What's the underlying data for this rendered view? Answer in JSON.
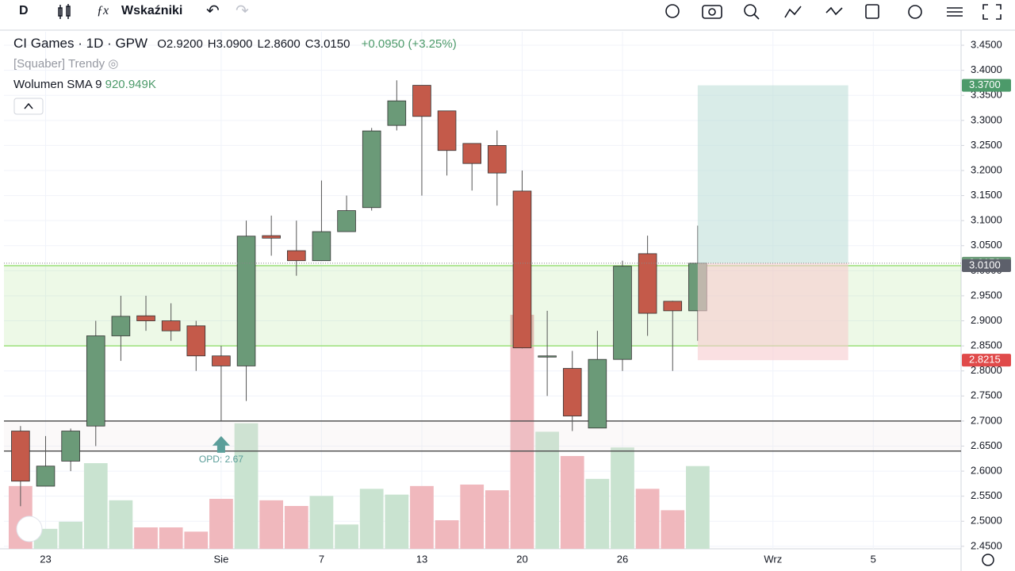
{
  "toolbar": {
    "interval": "D",
    "indicators": "Wskaźniki"
  },
  "legend": {
    "title": "CI Games · 1D · GPW",
    "ohlc": [
      "O2.9200",
      "H3.0900",
      "L2.8600",
      "C3.0150"
    ],
    "change": "+0.0950 (+3.25%)",
    "indicator": "[Squaber] Trendy",
    "volume_label": "Wolumen SMA 9",
    "volume_value": "920.949K"
  },
  "chart_data": {
    "type": "candlestick",
    "x": [
      0,
      1,
      2,
      3,
      4,
      5,
      6,
      7,
      8,
      9,
      10,
      11,
      12,
      13,
      14,
      15,
      16,
      17,
      18,
      19,
      20,
      21,
      22,
      23,
      24,
      25,
      26,
      27
    ],
    "open": [
      2.68,
      2.57,
      2.62,
      2.69,
      2.87,
      2.91,
      2.9,
      2.89,
      2.83,
      2.81,
      3.07,
      3.04,
      3.02,
      3.078,
      3.126,
      3.29,
      3.37,
      3.319,
      3.254,
      3.25,
      3.159,
      2.83,
      2.805,
      2.686,
      2.823,
      3.034,
      2.939,
      2.92
    ],
    "high": [
      2.69,
      2.67,
      2.685,
      2.9,
      2.95,
      2.95,
      2.935,
      2.9,
      2.85,
      3.1,
      3.11,
      3.1,
      3.18,
      3.15,
      3.285,
      3.38,
      3.37,
      3.319,
      3.254,
      3.28,
      3.2,
      2.92,
      2.84,
      2.88,
      3.02,
      3.07,
      2.94,
      3.09
    ],
    "low": [
      2.53,
      2.57,
      2.6,
      2.65,
      2.82,
      2.88,
      2.86,
      2.8,
      2.7,
      2.74,
      3.03,
      2.99,
      3.02,
      3.078,
      3.12,
      3.28,
      3.15,
      3.19,
      3.16,
      3.13,
      2.845,
      2.75,
      2.68,
      2.686,
      2.8,
      2.87,
      2.8,
      2.86
    ],
    "close": [
      2.58,
      2.61,
      2.68,
      2.87,
      2.909,
      2.9,
      2.88,
      2.83,
      2.81,
      3.069,
      3.065,
      3.02,
      3.078,
      3.12,
      3.279,
      3.339,
      3.308,
      3.24,
      3.214,
      3.195,
      2.846,
      2.83,
      2.71,
      2.823,
      3.009,
      2.915,
      2.92,
      3.015
    ],
    "volume": [
      607,
      193,
      262,
      828,
      469,
      207,
      207,
      166,
      483,
      1214,
      469,
      414,
      511,
      235,
      580,
      524,
      607,
      276,
      621,
      566,
      2263,
      1132,
      897,
      676,
      980,
      580,
      373,
      800
    ],
    "volume_lim": [
      0,
      5000
    ],
    "up_color": "#6b9a78",
    "down_color": "#c45a4a",
    "up_volume_color": "#c9e3d0",
    "down_volume_color": "#f0b8bd",
    "xlim": [
      -0.66,
      37.5
    ],
    "xticks": [
      {
        "value": 1,
        "label": "23"
      },
      {
        "value": 8,
        "label": "Sie"
      },
      {
        "value": 12,
        "label": "7"
      },
      {
        "value": 16,
        "label": "13"
      },
      {
        "value": 20,
        "label": "20"
      },
      {
        "value": 24,
        "label": "26"
      },
      {
        "value": 30,
        "label": "Wrz"
      },
      {
        "value": 34,
        "label": "5"
      }
    ],
    "ylim": [
      2.445,
      3.477
    ],
    "yticks": [
      {
        "value": 2.45,
        "label": "2.4500"
      },
      {
        "value": 2.5,
        "label": "2.5000"
      },
      {
        "value": 2.55,
        "label": "2.5500"
      },
      {
        "value": 2.6,
        "label": "2.6000"
      },
      {
        "value": 2.65,
        "label": "2.6500"
      },
      {
        "value": 2.7,
        "label": "2.7000"
      },
      {
        "value": 2.75,
        "label": "2.7500"
      },
      {
        "value": 2.8,
        "label": "2.8000"
      },
      {
        "value": 2.85,
        "label": "2.8500"
      },
      {
        "value": 2.9,
        "label": "2.9000"
      },
      {
        "value": 2.95,
        "label": "2.9500"
      },
      {
        "value": 3.0,
        "label": "3.0000"
      },
      {
        "value": 3.05,
        "label": "3.0500"
      },
      {
        "value": 3.1,
        "label": "3.1000"
      },
      {
        "value": 3.15,
        "label": "3.1500"
      },
      {
        "value": 3.2,
        "label": "3.2000"
      },
      {
        "value": 3.25,
        "label": "3.2500"
      },
      {
        "value": 3.3,
        "label": "3.3000"
      },
      {
        "value": 3.35,
        "label": "3.3500"
      },
      {
        "value": 3.4,
        "label": "3.4000"
      },
      {
        "value": 3.45,
        "label": "3.4500"
      }
    ],
    "grid": true,
    "zones": [
      {
        "from": 2.85,
        "to": 3.01,
        "color": "#9be07a"
      },
      {
        "from": 2.64,
        "to": 2.7,
        "color": "#e8dde0"
      }
    ],
    "position": {
      "x": [
        27,
        33
      ],
      "target": 3.37,
      "entry": 3.015,
      "stop": 2.8215,
      "profit_color": "#b9dcd6",
      "loss_color": "#f6cbcf"
    },
    "price_lines": [
      {
        "value": 3.37,
        "label": "3.3700",
        "color": "#4c9a6a"
      },
      {
        "value": 3.015,
        "label": "3.0150",
        "color": "#6b9a78"
      },
      {
        "value": 3.01,
        "label": "3.0100",
        "color": "#5d606b"
      },
      {
        "value": 2.8215,
        "label": "2.8215",
        "color": "#e04a4a"
      }
    ],
    "annotation": {
      "x": 8,
      "value": 2.67,
      "text": "OPD: 2.67",
      "color": "#5b9e9a"
    }
  }
}
